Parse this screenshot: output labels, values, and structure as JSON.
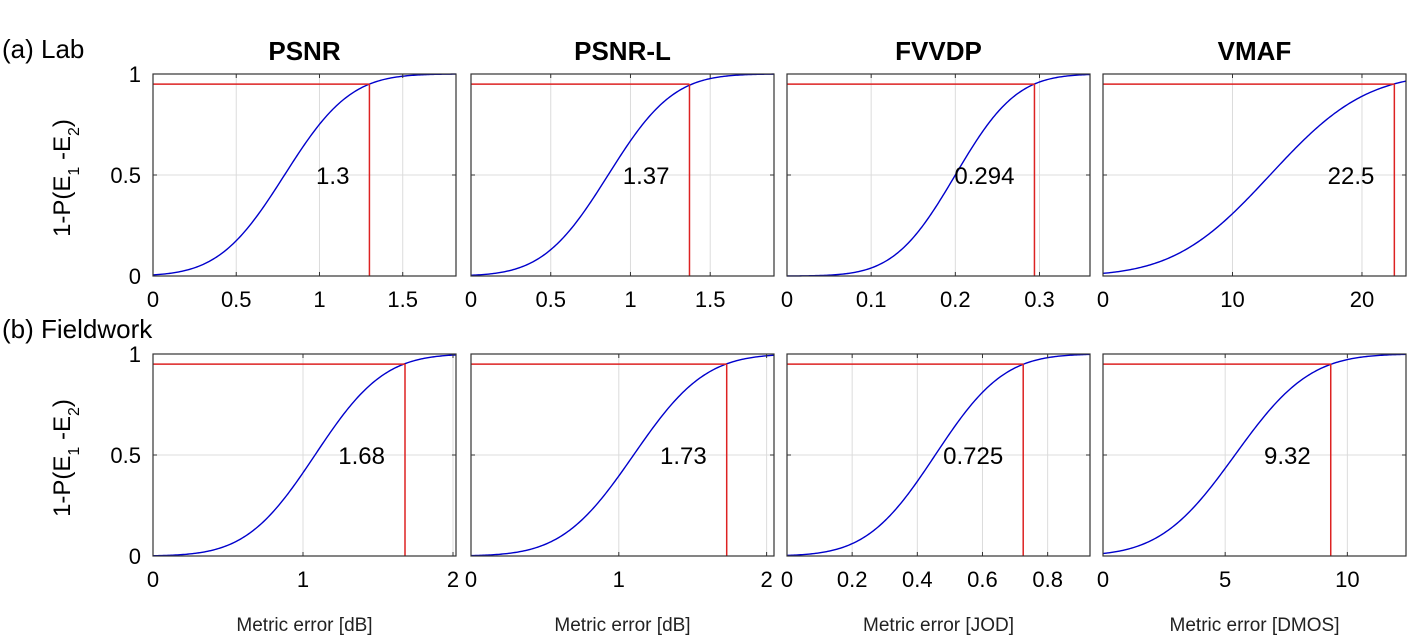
{
  "rows": [
    {
      "label": "(a) Lab"
    },
    {
      "label": "(b) Fieldwork"
    }
  ],
  "column_titles": [
    "PSNR",
    "PSNR-L",
    "FVVDP",
    "VMAF"
  ],
  "ylabel": "1-P(E1 -E2)",
  "ylabel_parts": {
    "prefix": "1-P(E",
    "sub1": "1",
    "middle": " -E",
    "sub2": "2",
    "suffix": ")"
  },
  "colors": {
    "curve": "#0000cc",
    "threshold": "#dd2222",
    "grid": "#dcdcdc",
    "axis": "#333333"
  },
  "chart_data": [
    {
      "type": "line",
      "row": 0,
      "col": 0,
      "title": "PSNR",
      "xlabel": "",
      "xlim": [
        0,
        1.82
      ],
      "ylim": [
        0,
        1
      ],
      "xticks": [
        0,
        0.5,
        1,
        1.5
      ],
      "xtick_labels": [
        "0",
        "0.5",
        "1",
        "1.5"
      ],
      "yticks": [
        0,
        0.5,
        1
      ],
      "ytick_labels": [
        "0",
        "0.5",
        "1"
      ],
      "curve": {
        "mu": 0.79,
        "sigma": 0.31
      },
      "threshold_x": 1.3,
      "threshold_y": 0.95,
      "threshold_label": "1.3"
    },
    {
      "type": "line",
      "row": 0,
      "col": 1,
      "title": "PSNR-L",
      "xlabel": "",
      "xlim": [
        0,
        1.9
      ],
      "ylim": [
        0,
        1
      ],
      "xticks": [
        0,
        0.5,
        1,
        1.5
      ],
      "xtick_labels": [
        "0",
        "0.5",
        "1",
        "1.5"
      ],
      "yticks": [
        0,
        0.5,
        1
      ],
      "ytick_labels": [
        "",
        "",
        ""
      ],
      "curve": {
        "mu": 0.86,
        "sigma": 0.32
      },
      "threshold_x": 1.37,
      "threshold_y": 0.95,
      "threshold_label": "1.37"
    },
    {
      "type": "line",
      "row": 0,
      "col": 2,
      "title": "FVVDP",
      "xlabel": "",
      "xlim": [
        0,
        0.36
      ],
      "ylim": [
        0,
        1
      ],
      "xticks": [
        0,
        0.1,
        0.2,
        0.3
      ],
      "xtick_labels": [
        "0",
        "0.1",
        "0.2",
        "0.3"
      ],
      "yticks": [
        0,
        0.5,
        1
      ],
      "ytick_labels": [
        "",
        "",
        ""
      ],
      "curve": {
        "mu": 0.2,
        "sigma": 0.057
      },
      "threshold_x": 0.294,
      "threshold_y": 0.95,
      "threshold_label": "0.294"
    },
    {
      "type": "line",
      "row": 0,
      "col": 3,
      "title": "VMAF",
      "xlabel": "",
      "xlim": [
        0,
        23.4
      ],
      "ylim": [
        0,
        1
      ],
      "xticks": [
        0,
        10,
        20
      ],
      "xtick_labels": [
        "0",
        "10",
        "20"
      ],
      "yticks": [
        0,
        0.5,
        1
      ],
      "ytick_labels": [
        "",
        "",
        ""
      ],
      "curve": {
        "mu": 12.9,
        "sigma": 5.8
      },
      "threshold_x": 22.5,
      "threshold_y": 0.95,
      "threshold_label": "22.5"
    },
    {
      "type": "line",
      "row": 1,
      "col": 0,
      "title": "",
      "xlabel": "Metric error [dB]",
      "xlim": [
        0,
        2.02
      ],
      "ylim": [
        0,
        1
      ],
      "xticks": [
        0,
        1,
        2
      ],
      "xtick_labels": [
        "0",
        "1",
        "2"
      ],
      "yticks": [
        0,
        0.5,
        1
      ],
      "ytick_labels": [
        "0",
        "0.5",
        "1"
      ],
      "curve": {
        "mu": 1.08,
        "sigma": 0.36
      },
      "threshold_x": 1.68,
      "threshold_y": 0.95,
      "threshold_label": "1.68"
    },
    {
      "type": "line",
      "row": 1,
      "col": 1,
      "title": "",
      "xlabel": "Metric error [dB]",
      "xlim": [
        0,
        2.05
      ],
      "ylim": [
        0,
        1
      ],
      "xticks": [
        0,
        1,
        2
      ],
      "xtick_labels": [
        "0",
        "1",
        "2"
      ],
      "yticks": [
        0,
        0.5,
        1
      ],
      "ytick_labels": [
        "",
        "",
        ""
      ],
      "curve": {
        "mu": 1.1,
        "sigma": 0.38
      },
      "threshold_x": 1.73,
      "threshold_y": 0.95,
      "threshold_label": "1.73"
    },
    {
      "type": "line",
      "row": 1,
      "col": 2,
      "title": "",
      "xlabel": "Metric error [JOD]",
      "xlim": [
        0,
        0.93
      ],
      "ylim": [
        0,
        1
      ],
      "xticks": [
        0,
        0.2,
        0.4,
        0.6,
        0.8
      ],
      "xtick_labels": [
        "0",
        "0.2",
        "0.4",
        "0.6",
        "0.8"
      ],
      "yticks": [
        0,
        0.5,
        1
      ],
      "ytick_labels": [
        "",
        "",
        ""
      ],
      "curve": {
        "mu": 0.455,
        "sigma": 0.165
      },
      "threshold_x": 0.725,
      "threshold_y": 0.95,
      "threshold_label": "0.725"
    },
    {
      "type": "line",
      "row": 1,
      "col": 3,
      "title": "",
      "xlabel": "Metric error [DMOS]",
      "xlim": [
        0,
        12.4
      ],
      "ylim": [
        0,
        1
      ],
      "xticks": [
        0,
        5,
        10
      ],
      "xtick_labels": [
        "0",
        "5",
        "10"
      ],
      "yticks": [
        0,
        0.5,
        1
      ],
      "ytick_labels": [
        "",
        "",
        ""
      ],
      "curve": {
        "mu": 5.4,
        "sigma": 2.4
      },
      "threshold_x": 9.32,
      "threshold_y": 0.95,
      "threshold_label": "9.32"
    }
  ]
}
